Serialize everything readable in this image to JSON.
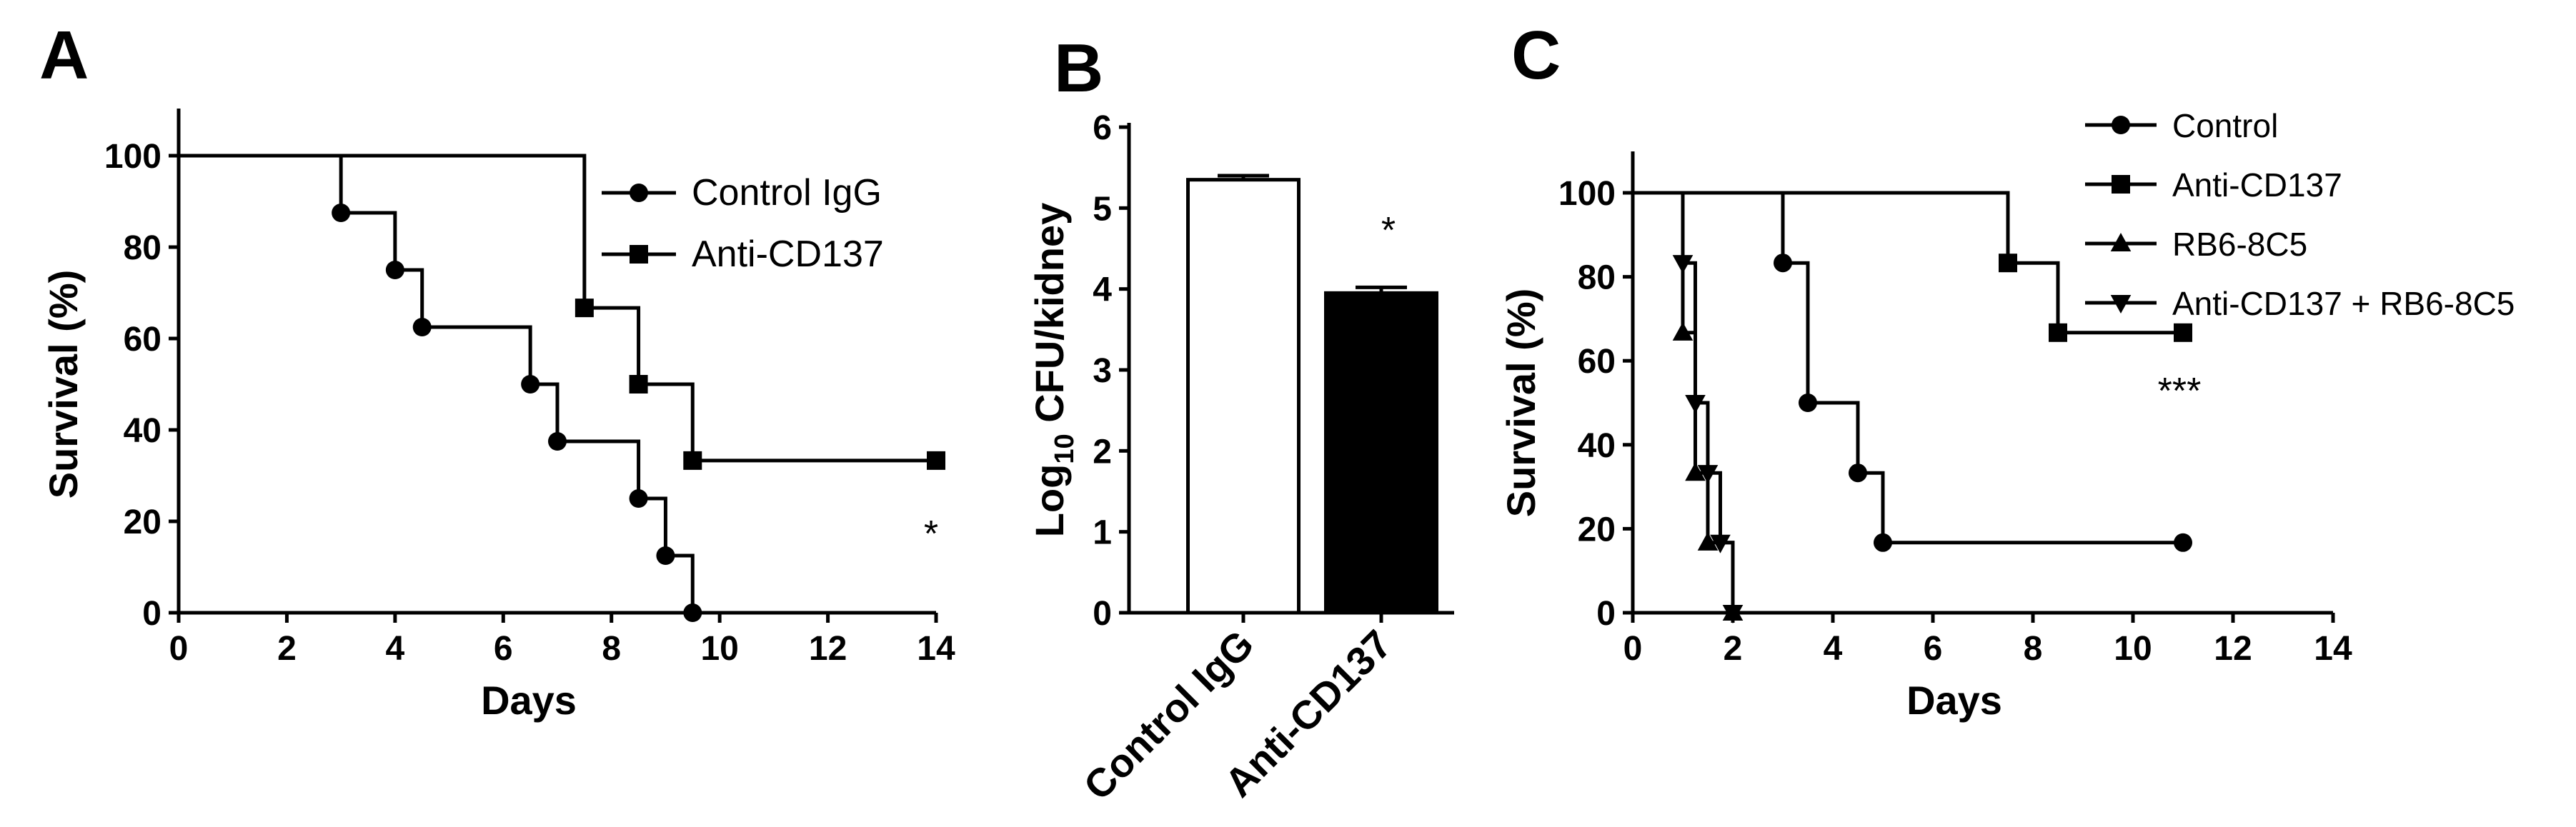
{
  "chart_data": [
    {
      "panel": "A",
      "type": "line",
      "subtype": "kaplan-meier-step",
      "xlabel": "Days",
      "ylabel": "Survival (%)",
      "xlim": [
        0,
        14
      ],
      "ylim": [
        0,
        100
      ],
      "xticks": [
        "0",
        "2",
        "4",
        "6",
        "8",
        "10",
        "12",
        "14"
      ],
      "yticks": [
        "0",
        "20",
        "40",
        "60",
        "80",
        "100"
      ],
      "legend_position": "top-right",
      "significance": "*",
      "series": [
        {
          "name": "Control IgG",
          "marker": "circle",
          "steps": [
            [
              0,
              100
            ],
            [
              3,
              87.5
            ],
            [
              4,
              75
            ],
            [
              4.5,
              62.5
            ],
            [
              6.5,
              50
            ],
            [
              7,
              37.5
            ],
            [
              8.5,
              25
            ],
            [
              9,
              12.5
            ],
            [
              9.5,
              0
            ]
          ],
          "markers": [
            [
              3,
              87.5
            ],
            [
              4,
              75
            ],
            [
              4.5,
              62.5
            ],
            [
              6.5,
              50
            ],
            [
              7,
              37.5
            ],
            [
              8.5,
              25
            ],
            [
              9,
              12.5
            ],
            [
              9.5,
              0
            ]
          ],
          "end_x": 9.5
        },
        {
          "name": "Anti-CD137",
          "marker": "square",
          "steps": [
            [
              0,
              100
            ],
            [
              7.5,
              66.7
            ],
            [
              8.5,
              50
            ],
            [
              9.5,
              33.3
            ]
          ],
          "markers": [
            [
              7.5,
              66.7
            ],
            [
              8.5,
              50
            ],
            [
              9.5,
              33.3
            ],
            [
              14,
              33.3
            ]
          ],
          "end_x": 14
        }
      ]
    },
    {
      "panel": "B",
      "type": "bar",
      "ylabel": "Log10 CFU/kidney",
      "ylabel_main": "Log",
      "ylabel_sub": "10",
      "ylabel_rest": " CFU/kidney",
      "categories": [
        "Control IgG",
        "Anti-CD137"
      ],
      "values": [
        5.35,
        3.95
      ],
      "errors": [
        0.05,
        0.07
      ],
      "fills": [
        "#ffffff",
        "#000000"
      ],
      "ylim": [
        0,
        6
      ],
      "yticks": [
        "0",
        "1",
        "2",
        "3",
        "4",
        "5",
        "6"
      ],
      "significance": "*"
    },
    {
      "panel": "C",
      "type": "line",
      "subtype": "kaplan-meier-step",
      "xlabel": "Days",
      "ylabel": "Survival (%)",
      "xlim": [
        0,
        14
      ],
      "ylim": [
        0,
        100
      ],
      "xticks": [
        "0",
        "2",
        "4",
        "6",
        "8",
        "10",
        "12",
        "14"
      ],
      "yticks": [
        "0",
        "20",
        "40",
        "60",
        "80",
        "100"
      ],
      "legend_position": "top-right",
      "significance": "***",
      "series": [
        {
          "name": "Control",
          "marker": "circle",
          "steps": [
            [
              0,
              100
            ],
            [
              3,
              83.3
            ],
            [
              3.5,
              50
            ],
            [
              4.5,
              33.3
            ],
            [
              5,
              16.7
            ]
          ],
          "markers": [
            [
              3,
              83.3
            ],
            [
              3.5,
              50
            ],
            [
              4.5,
              33.3
            ],
            [
              5,
              16.7
            ],
            [
              11,
              16.7
            ]
          ],
          "end_x": 11
        },
        {
          "name": "Anti-CD137",
          "marker": "square",
          "steps": [
            [
              0,
              100
            ],
            [
              7.5,
              83.3
            ],
            [
              8.5,
              66.7
            ]
          ],
          "markers": [
            [
              7.5,
              83.3
            ],
            [
              8.5,
              66.7
            ],
            [
              11,
              66.7
            ]
          ],
          "end_x": 11
        },
        {
          "name": "RB6-8C5",
          "marker": "triangle-up",
          "steps": [
            [
              0,
              100
            ],
            [
              1,
              66.7
            ],
            [
              1.25,
              33.3
            ],
            [
              1.5,
              16.7
            ],
            [
              2,
              0
            ]
          ],
          "markers": [
            [
              1,
              66.7
            ],
            [
              1.25,
              33.3
            ],
            [
              1.5,
              16.7
            ],
            [
              2,
              0
            ]
          ],
          "end_x": 2
        },
        {
          "name": "Anti-CD137 + RB6-8C5",
          "marker": "triangle-down",
          "steps": [
            [
              0,
              100
            ],
            [
              1,
              83.3
            ],
            [
              1.25,
              50
            ],
            [
              1.5,
              33.3
            ],
            [
              1.75,
              16.7
            ],
            [
              2,
              0
            ]
          ],
          "markers": [
            [
              1,
              83.3
            ],
            [
              1.25,
              50
            ],
            [
              1.5,
              33.3
            ],
            [
              1.75,
              16.7
            ],
            [
              2,
              0
            ]
          ],
          "end_x": 2
        }
      ]
    }
  ]
}
